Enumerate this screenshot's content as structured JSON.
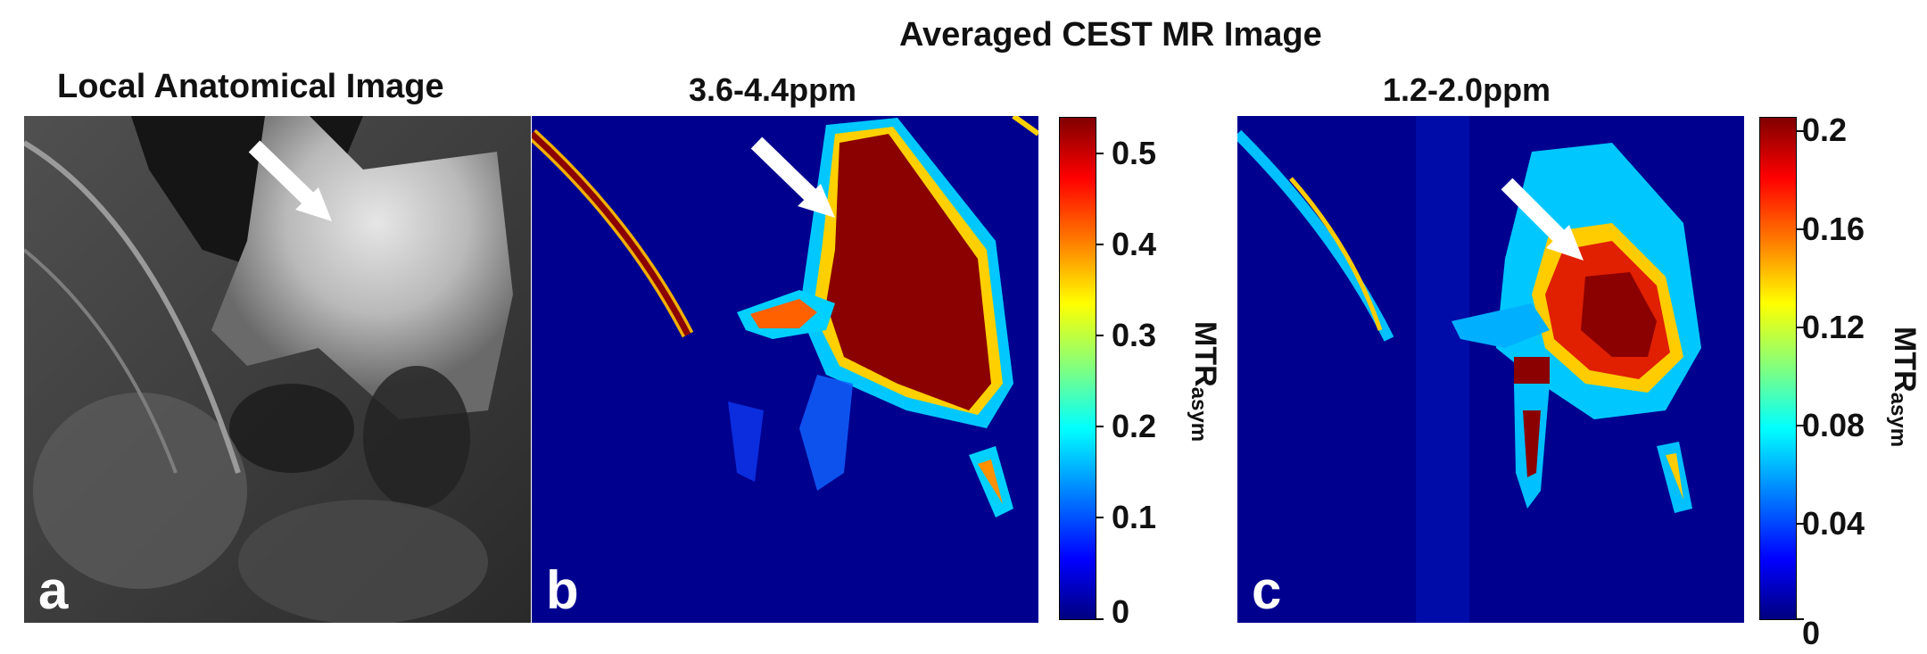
{
  "figure": {
    "title_cest": "Averaged CEST MR Image",
    "panels": [
      {
        "letter": "a",
        "title": "Local Anatomical Image"
      },
      {
        "letter": "b",
        "title": "3.6-4.4ppm"
      },
      {
        "letter": "c",
        "title": "1.2-2.0ppm"
      }
    ],
    "colorbars": [
      {
        "ticks": [
          "0.5",
          "0.4",
          "0.3",
          "0.2",
          "0.1",
          "0"
        ],
        "label_main": "MTR",
        "label_sub": "asym"
      },
      {
        "ticks": [
          "0.2",
          "0.16",
          "0.12",
          "0.08",
          "0.04",
          "0"
        ],
        "label_main": "MTR",
        "label_sub": "asym"
      }
    ],
    "colormap": "jet",
    "colors": {
      "background_map": "#00008f",
      "hot": "#8b0000",
      "arrow": "#ffffff"
    }
  }
}
